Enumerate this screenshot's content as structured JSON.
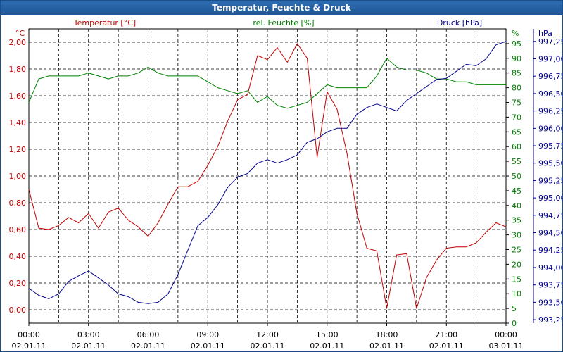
{
  "window": {
    "title": "Temperatur, Feuchte & Druck"
  },
  "chart_data": {
    "type": "line",
    "title": "Temperatur, Feuchte & Druck",
    "x": [
      "00:00",
      "00:30",
      "01:00",
      "01:30",
      "02:00",
      "02:30",
      "03:00",
      "03:30",
      "04:00",
      "04:30",
      "05:00",
      "05:30",
      "06:00",
      "06:30",
      "07:00",
      "07:30",
      "08:00",
      "08:30",
      "09:00",
      "09:30",
      "10:00",
      "10:30",
      "11:00",
      "11:30",
      "12:00",
      "12:30",
      "13:00",
      "13:30",
      "14:00",
      "14:30",
      "15:00",
      "15:30",
      "16:00",
      "16:30",
      "17:00",
      "17:30",
      "18:00",
      "18:30",
      "19:00",
      "19:30",
      "20:00",
      "20:30",
      "21:00",
      "21:30",
      "22:00",
      "22:30",
      "23:00",
      "23:30",
      "24:00"
    ],
    "x_ticks": [
      {
        "time": "00:00",
        "date": "02.01.11"
      },
      {
        "time": "03:00",
        "date": "02.01.11"
      },
      {
        "time": "06:00",
        "date": "02.01.11"
      },
      {
        "time": "09:00",
        "date": "02.01.11"
      },
      {
        "time": "12:00",
        "date": "02.01.11"
      },
      {
        "time": "15:00",
        "date": "02.01.11"
      },
      {
        "time": "18:00",
        "date": "02.01.11"
      },
      {
        "time": "21:00",
        "date": "02.01.11"
      },
      {
        "time": "00:00",
        "date": "03.01.11"
      }
    ],
    "axes": {
      "temperature": {
        "label": "Temperatur [°C]",
        "unit": "°C",
        "color": "#c00000",
        "side": "left",
        "range": [
          -0.1,
          2.1
        ],
        "ticks": [
          "0,00",
          "0,20",
          "0,40",
          "0,60",
          "0,80",
          "1,00",
          "1,20",
          "1,40",
          "1,60",
          "1,80",
          "2,00"
        ]
      },
      "humidity": {
        "label": "rel. Feuchte [%]",
        "unit": "%",
        "color": "#008000",
        "side": "right",
        "range": [
          0,
          100
        ],
        "ticks": [
          "0",
          "5",
          "10",
          "15",
          "20",
          "25",
          "30",
          "35",
          "40",
          "45",
          "50",
          "55",
          "60",
          "65",
          "70",
          "75",
          "80",
          "85",
          "90",
          "95"
        ]
      },
      "pressure": {
        "label": "Druck [hPa]",
        "unit": "hPa",
        "color": "#00008b",
        "side": "right",
        "range": [
          993.2,
          997.43
        ],
        "ticks": [
          "993,25",
          "993,50",
          "993,75",
          "994,00",
          "994,25",
          "994,50",
          "994,75",
          "995,00",
          "995,25",
          "995,50",
          "995,75",
          "996,00",
          "996,25",
          "996,50",
          "996,75",
          "997,00",
          "997,25"
        ]
      }
    },
    "series": [
      {
        "name": "Temperatur [°C]",
        "axis": "temperature",
        "values": [
          0.9,
          0.61,
          0.6,
          0.63,
          0.69,
          0.65,
          0.72,
          0.61,
          0.73,
          0.76,
          0.67,
          0.62,
          0.55,
          0.65,
          0.79,
          0.92,
          0.92,
          0.96,
          1.08,
          1.22,
          1.41,
          1.57,
          1.61,
          1.9,
          1.87,
          1.96,
          1.85,
          1.99,
          1.88,
          1.14,
          1.63,
          1.5,
          1.17,
          0.72,
          0.46,
          0.44,
          0.01,
          0.41,
          0.42,
          0.01,
          0.24,
          0.37,
          0.46,
          0.47,
          0.47,
          0.5,
          0.58,
          0.65,
          0.62
        ]
      },
      {
        "name": "rel. Feuchte [%]",
        "axis": "humidity",
        "values": [
          75,
          83,
          84,
          84,
          84,
          84,
          85,
          84,
          83,
          84,
          84,
          85,
          87,
          85,
          84,
          84,
          84,
          84,
          82,
          80,
          79,
          78,
          79,
          75,
          77,
          74,
          73,
          74,
          75,
          78,
          81,
          80,
          80,
          80,
          80,
          84,
          90,
          87,
          86,
          86,
          85,
          83,
          83,
          82,
          82,
          81,
          81,
          81,
          81
        ]
      },
      {
        "name": "Druck [hPa]",
        "axis": "pressure",
        "values": [
          993.7,
          993.6,
          993.55,
          993.62,
          993.8,
          993.88,
          993.95,
          993.85,
          993.75,
          993.62,
          993.58,
          993.5,
          993.48,
          993.5,
          993.62,
          993.9,
          994.25,
          994.6,
          994.72,
          994.9,
          995.15,
          995.3,
          995.35,
          995.5,
          995.55,
          995.5,
          995.55,
          995.62,
          995.8,
          995.85,
          995.95,
          996.0,
          996.0,
          996.2,
          996.3,
          996.35,
          996.3,
          996.25,
          996.4,
          996.5,
          996.6,
          996.7,
          996.72,
          996.82,
          996.92,
          996.9,
          997.0,
          997.2,
          997.25
        ]
      }
    ]
  }
}
